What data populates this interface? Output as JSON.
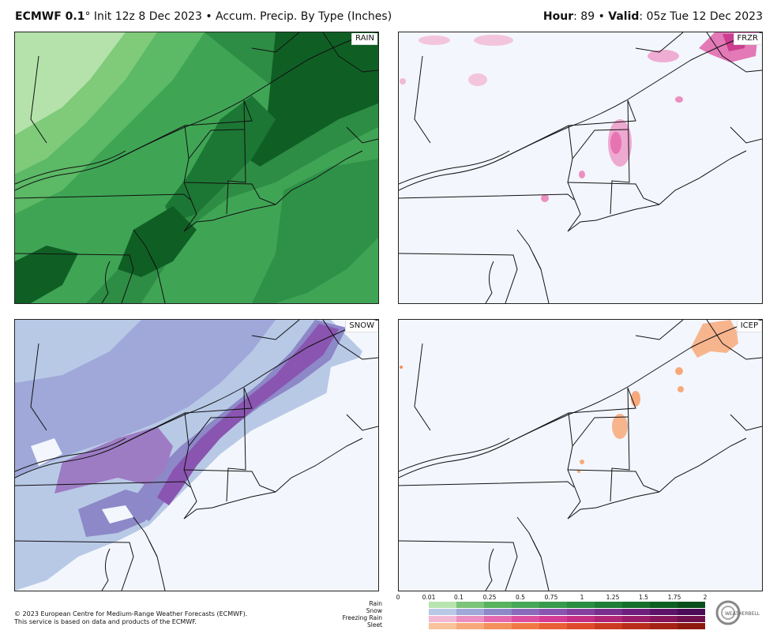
{
  "header": {
    "model": "ECMWF 0.1",
    "degree": "°",
    "init": " Init 12z 8 Dec 2023 • Accum. Precip. By Type (Inches)",
    "hour_label": "Hour",
    "hour_value": ": 89 • ",
    "valid_label": "Valid",
    "valid_value": ": 05z Tue 12 Dec 2023"
  },
  "panels": {
    "rain": "RAIN",
    "frzr": "FRZR",
    "snow": "SNOW",
    "icep": "ICEP"
  },
  "footer": {
    "line1": "© 2023 European Centre for Medium-Range Weather Forecasts (ECMWF).",
    "line2": "This service is based on data and products of the ECMWF."
  },
  "legend": {
    "ticks": [
      "0",
      "0.01",
      "0.1",
      "0.25",
      "0.5",
      "0.75",
      "1",
      "1.25",
      "1.5",
      "1.75",
      "2"
    ],
    "rows": [
      "Rain",
      "Snow",
      "Freezing Rain",
      "Sleet"
    ],
    "colors": {
      "rain": [
        "#b8e4b0",
        "#7cc47a",
        "#58b35e",
        "#47a758",
        "#379a4c",
        "#2a8e42",
        "#1f7f36",
        "#16702c",
        "#0e5f22",
        "#0a4f1b"
      ],
      "snow": [
        "#b8c9e6",
        "#9fa8d8",
        "#8d88c8",
        "#8a6bbb",
        "#8a55b0",
        "#85409f",
        "#7a2f8e",
        "#6e1f7d",
        "#5d136a",
        "#4c0b57"
      ],
      "frzr": [
        "#f2b9d5",
        "#ec8fc0",
        "#e56aad",
        "#dd4f9f",
        "#d43c93",
        "#c42f84",
        "#b02576",
        "#9b1c68",
        "#86155a",
        "#70104c"
      ],
      "icep": [
        "#f9c29a",
        "#f7a97a",
        "#f4905c",
        "#f07845",
        "#e96036",
        "#de4a2b",
        "#cd3a22",
        "#b92d1a",
        "#a42214",
        "#8d190f"
      ]
    }
  },
  "logo_text": "WEATHERBELL"
}
